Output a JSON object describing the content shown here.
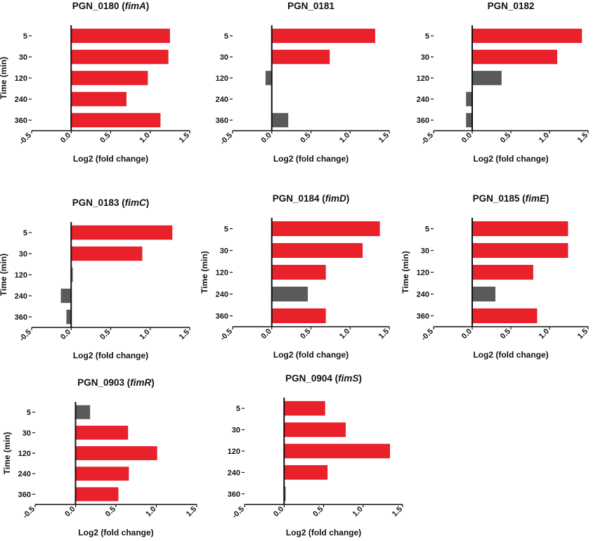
{
  "figure": {
    "background": "#ffffff"
  },
  "style": {
    "up_color": "#e8212a",
    "neutral_color": "#5a5a5a",
    "axis_color": "#111111"
  },
  "chart_data": [
    {
      "type": "bar",
      "orientation": "horizontal",
      "gene": "PGN_0180",
      "gene_name": "fimA",
      "title": "PGN_0180 (fimA)",
      "categories": [
        "5",
        "30",
        "120",
        "240",
        "360"
      ],
      "values": [
        1.25,
        1.23,
        0.97,
        0.7,
        1.13
      ],
      "significant": [
        true,
        true,
        true,
        true,
        true
      ],
      "xlabel": "Log2 (fold change)",
      "ylabel": "Time (min)",
      "xlim": [
        -0.5,
        1.5
      ],
      "xticks": [
        "-0.5",
        "0.0",
        "0.5",
        "1.0",
        "1.5"
      ]
    },
    {
      "type": "bar",
      "orientation": "horizontal",
      "gene": "PGN_0181",
      "gene_name": "",
      "title": "PGN_0181",
      "categories": [
        "5",
        "30",
        "120",
        "240",
        "360"
      ],
      "values": [
        1.32,
        0.74,
        -0.08,
        0.0,
        0.21
      ],
      "significant": [
        true,
        true,
        false,
        false,
        false
      ],
      "xlabel": "Log2 (fold change)",
      "ylabel": "",
      "xlim": [
        -0.5,
        1.5
      ],
      "xticks": [
        "-0.5",
        "0.0",
        "0.5",
        "1.0",
        "1.5"
      ]
    },
    {
      "type": "bar",
      "orientation": "horizontal",
      "gene": "PGN_0182",
      "gene_name": "",
      "title": "PGN_0182",
      "categories": [
        "5",
        "30",
        "120",
        "240",
        "360"
      ],
      "values": [
        1.42,
        1.1,
        0.38,
        -0.08,
        -0.08
      ],
      "significant": [
        true,
        true,
        false,
        false,
        false
      ],
      "xlabel": "Log2 (fold change)",
      "ylabel": "",
      "xlim": [
        -0.5,
        1.5
      ],
      "xticks": [
        "-0.5",
        "0.0",
        "0.5",
        "1.0",
        "1.5"
      ]
    },
    {
      "type": "bar",
      "orientation": "horizontal",
      "gene": "PGN_0183",
      "gene_name": "fimC",
      "title": "PGN_0183 (fimC)",
      "categories": [
        "5",
        "30",
        "120",
        "240",
        "360"
      ],
      "values": [
        1.28,
        0.9,
        0.02,
        -0.13,
        -0.06
      ],
      "significant": [
        true,
        true,
        false,
        false,
        false
      ],
      "xlabel": "Log2 (fold change)",
      "ylabel": "Time (min)",
      "xlim": [
        -0.5,
        1.5
      ],
      "xticks": [
        "-0.5",
        "0.0",
        "0.5",
        "1.0",
        "1.5"
      ]
    },
    {
      "type": "bar",
      "orientation": "horizontal",
      "gene": "PGN_0184",
      "gene_name": "fimD",
      "title": "PGN_0184 (fimD)",
      "categories": [
        "5",
        "30",
        "120",
        "240",
        "360"
      ],
      "values": [
        1.38,
        1.16,
        0.69,
        0.46,
        0.69
      ],
      "significant": [
        true,
        true,
        true,
        false,
        true
      ],
      "xlabel": "Log2 (fold change)",
      "ylabel": "Time (min)",
      "xlim": [
        -0.5,
        1.5
      ],
      "xticks": [
        "-0.5",
        "0.0",
        "0.5",
        "1.0",
        "1.5"
      ]
    },
    {
      "type": "bar",
      "orientation": "horizontal",
      "gene": "PGN_0185",
      "gene_name": "fimE",
      "title": "PGN_0185 (fimE)",
      "categories": [
        "5",
        "30",
        "120",
        "240",
        "360"
      ],
      "values": [
        1.24,
        1.24,
        0.79,
        0.3,
        0.84
      ],
      "significant": [
        true,
        true,
        true,
        false,
        true
      ],
      "xlabel": "Log2 (fold change)",
      "ylabel": "Time (min)",
      "xlim": [
        -0.5,
        1.5
      ],
      "xticks": [
        "-0.5",
        "0.0",
        "0.5",
        "1.0",
        "1.5"
      ]
    },
    {
      "type": "bar",
      "orientation": "horizontal",
      "gene": "PGN_0903",
      "gene_name": "fimR",
      "title": "PGN_0903 (fimR)",
      "categories": [
        "5",
        "30",
        "120",
        "240",
        "360"
      ],
      "values": [
        0.18,
        0.65,
        1.01,
        0.66,
        0.53
      ],
      "significant": [
        false,
        true,
        true,
        true,
        true
      ],
      "xlabel": "Log2 (fold change)",
      "ylabel": "Time (min)",
      "xlim": [
        -0.5,
        1.5
      ],
      "xticks": [
        "-0.5",
        "0.0",
        "0.5",
        "1.0",
        "1.5"
      ]
    },
    {
      "type": "bar",
      "orientation": "horizontal",
      "gene": "PGN_0904",
      "gene_name": "fimS",
      "title": "PGN_0904 (fimS)",
      "categories": [
        "5",
        "30",
        "120",
        "240",
        "360"
      ],
      "values": [
        0.52,
        0.78,
        1.34,
        0.55,
        0.02
      ],
      "significant": [
        true,
        true,
        true,
        true,
        false
      ],
      "xlabel": "Log2 (fold change)",
      "ylabel": "",
      "xlim": [
        -0.5,
        1.5
      ],
      "xticks": [
        "-0.5",
        "0.0",
        "0.5",
        "1.0",
        "1.5"
      ]
    }
  ]
}
